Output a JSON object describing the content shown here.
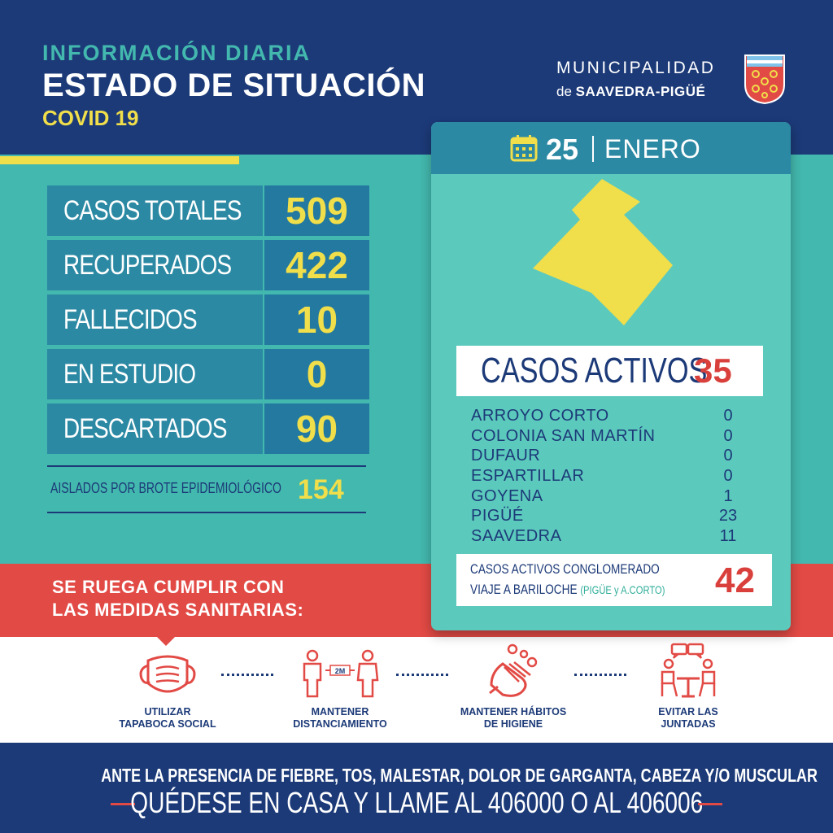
{
  "header": {
    "subtitle": "INFORMACIÓN DIARIA",
    "title": "ESTADO DE SITUACIÓN",
    "covid": "COVID 19"
  },
  "municipality": {
    "line1": "MUNICIPALIDAD",
    "prefix": "de",
    "name": "SAAVEDRA-PIGÜÉ"
  },
  "stats": [
    {
      "label": "CASOS TOTALES",
      "value": "509"
    },
    {
      "label": "RECUPERADOS",
      "value": "422"
    },
    {
      "label": "FALLECIDOS",
      "value": "10"
    },
    {
      "label": "EN ESTUDIO",
      "value": "0"
    },
    {
      "label": "DESCARTADOS",
      "value": "90"
    }
  ],
  "aislados": {
    "label": "AISLADOS POR BROTE EPIDEMIOLÓGICO",
    "value": "154"
  },
  "date": {
    "day": "25",
    "month": "ENERO"
  },
  "activos": {
    "label": "CASOS ACTIVOS",
    "value": "35",
    "localities": [
      {
        "name": "ARROYO CORTO",
        "value": "0"
      },
      {
        "name": "COLONIA SAN MARTÍN",
        "value": "0"
      },
      {
        "name": "DUFAUR",
        "value": "0"
      },
      {
        "name": "ESPARTILLAR",
        "value": "0"
      },
      {
        "name": "GOYENA",
        "value": "1"
      },
      {
        "name": "PIGÜÉ",
        "value": "23"
      },
      {
        "name": "SAAVEDRA",
        "value": "11"
      }
    ]
  },
  "conglomerado": {
    "line1": "CASOS ACTIVOS CONGLOMERADO",
    "line2": "VIAJE A BARILOCHE",
    "note": "(PIGÜE y A.CORTO)",
    "value": "42"
  },
  "ruega": {
    "line1": "SE RUEGA CUMPLIR CON",
    "line2": "LAS MEDIDAS SANITARIAS:"
  },
  "measures": [
    {
      "line1": "UTILIZAR",
      "line2": "TAPABOCA SOCIAL",
      "icon": "mask-icon"
    },
    {
      "line1": "MANTENER",
      "line2": "DISTANCIAMIENTO",
      "icon": "distance-icon",
      "tag": "2M"
    },
    {
      "line1": "MANTENER HÁBITOS",
      "line2": "DE HIGIENE",
      "icon": "handwash-icon"
    },
    {
      "line1": "EVITAR LAS",
      "line2": "JUNTADAS",
      "icon": "gathering-icon"
    }
  ],
  "footer": {
    "line1": "ANTE LA PRESENCIA DE FIEBRE, TOS, MALESTAR, DOLOR DE GARGANTA, CABEZA Y/O MUSCULAR",
    "line2": "QUÉDESE EN CASA Y LLAME AL 406000 O AL 406006"
  },
  "colors": {
    "navy": "#1c3a78",
    "teal": "#43b8ae",
    "yellow": "#f0de4a",
    "red": "#e24a45"
  }
}
